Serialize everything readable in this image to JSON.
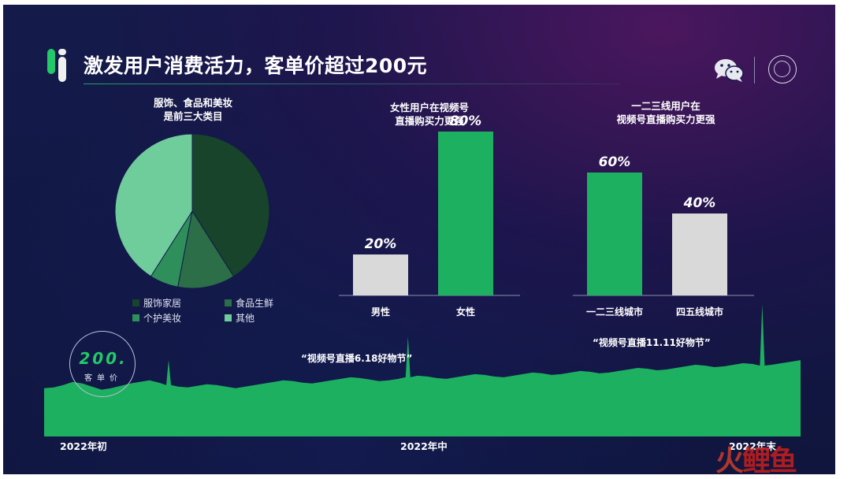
{
  "title": "激发用户消费活力，客单价超过200元",
  "pie_section": {
    "caption_line1": "服饰、食品和美妆",
    "caption_line2": "是前三大类目"
  },
  "bar_section_1": {
    "caption_line1": "女性用户在视频号",
    "caption_line2": "直播购买力更强"
  },
  "bar_section_2": {
    "caption_line1": "一二三线用户在",
    "caption_line2": "视频号直播购买力更强"
  },
  "price_badge": {
    "value": "200.",
    "label": "客单价"
  },
  "annotations": {
    "event_618": "“视频号直播6.18好物节”",
    "event_1111": "“视频号直播11.11好物节”"
  },
  "timeline": {
    "start": "2022年初",
    "mid": "2022年中",
    "end": "2022年末"
  },
  "watermark": {
    "part1": "火",
    "part2": "鲤鱼"
  },
  "colors": {
    "dark_green": "#17442b",
    "mid_green": "#2b6e48",
    "green": "#2f8f5b",
    "light_green": "#6fcc9b",
    "accent_green": "#1eb061",
    "gray": "#d9d9d9"
  },
  "chart_data": [
    {
      "type": "pie",
      "slices": [
        {
          "name": "服饰家居",
          "value": 41,
          "color": "#17442b"
        },
        {
          "name": "食品生鲜",
          "value": 12,
          "color": "#2b6e48"
        },
        {
          "name": "个护美妆",
          "value": 6,
          "color": "#2f8f5b"
        },
        {
          "name": "其他",
          "value": 41,
          "color": "#6fcc9b"
        }
      ],
      "legend": [
        "服饰家居",
        "食品生鲜",
        "个护美妆",
        "其他"
      ]
    },
    {
      "type": "bar",
      "categories": [
        "男性",
        "女性"
      ],
      "values": [
        20,
        80
      ],
      "labels": [
        "20%",
        "80%"
      ],
      "colors": [
        "#d9d9d9",
        "#1eb061"
      ],
      "ylim": [
        0,
        100
      ]
    },
    {
      "type": "bar",
      "categories": [
        "一二三线城市",
        "四五线城市"
      ],
      "values": [
        60,
        40
      ],
      "labels": [
        "60%",
        "40%"
      ],
      "colors": [
        "#1eb061",
        "#d9d9d9"
      ],
      "ylim": [
        0,
        100
      ]
    },
    {
      "type": "area",
      "values": [
        62,
        63,
        66,
        70,
        68,
        64,
        60,
        62,
        65,
        68,
        70,
        72,
        69,
        66,
        64,
        63,
        65,
        67,
        66,
        64,
        62,
        64,
        66,
        68,
        70,
        72,
        71,
        69,
        68,
        70,
        72,
        74,
        76,
        75,
        73,
        71,
        72,
        74,
        76,
        78,
        77,
        75,
        74,
        76,
        78,
        80,
        79,
        77,
        76,
        78,
        80,
        82,
        81,
        79,
        80,
        82,
        84,
        83,
        81,
        82,
        84,
        86,
        88,
        87,
        85,
        86,
        88,
        90,
        92,
        91,
        89,
        90,
        92,
        94,
        93,
        91,
        92,
        94,
        96,
        98
      ],
      "spikes": [
        {
          "index": 13,
          "value": 98
        },
        {
          "index": 38,
          "value": 128
        },
        {
          "index": 75,
          "value": 170
        }
      ],
      "ylim": [
        0,
        180
      ]
    }
  ]
}
